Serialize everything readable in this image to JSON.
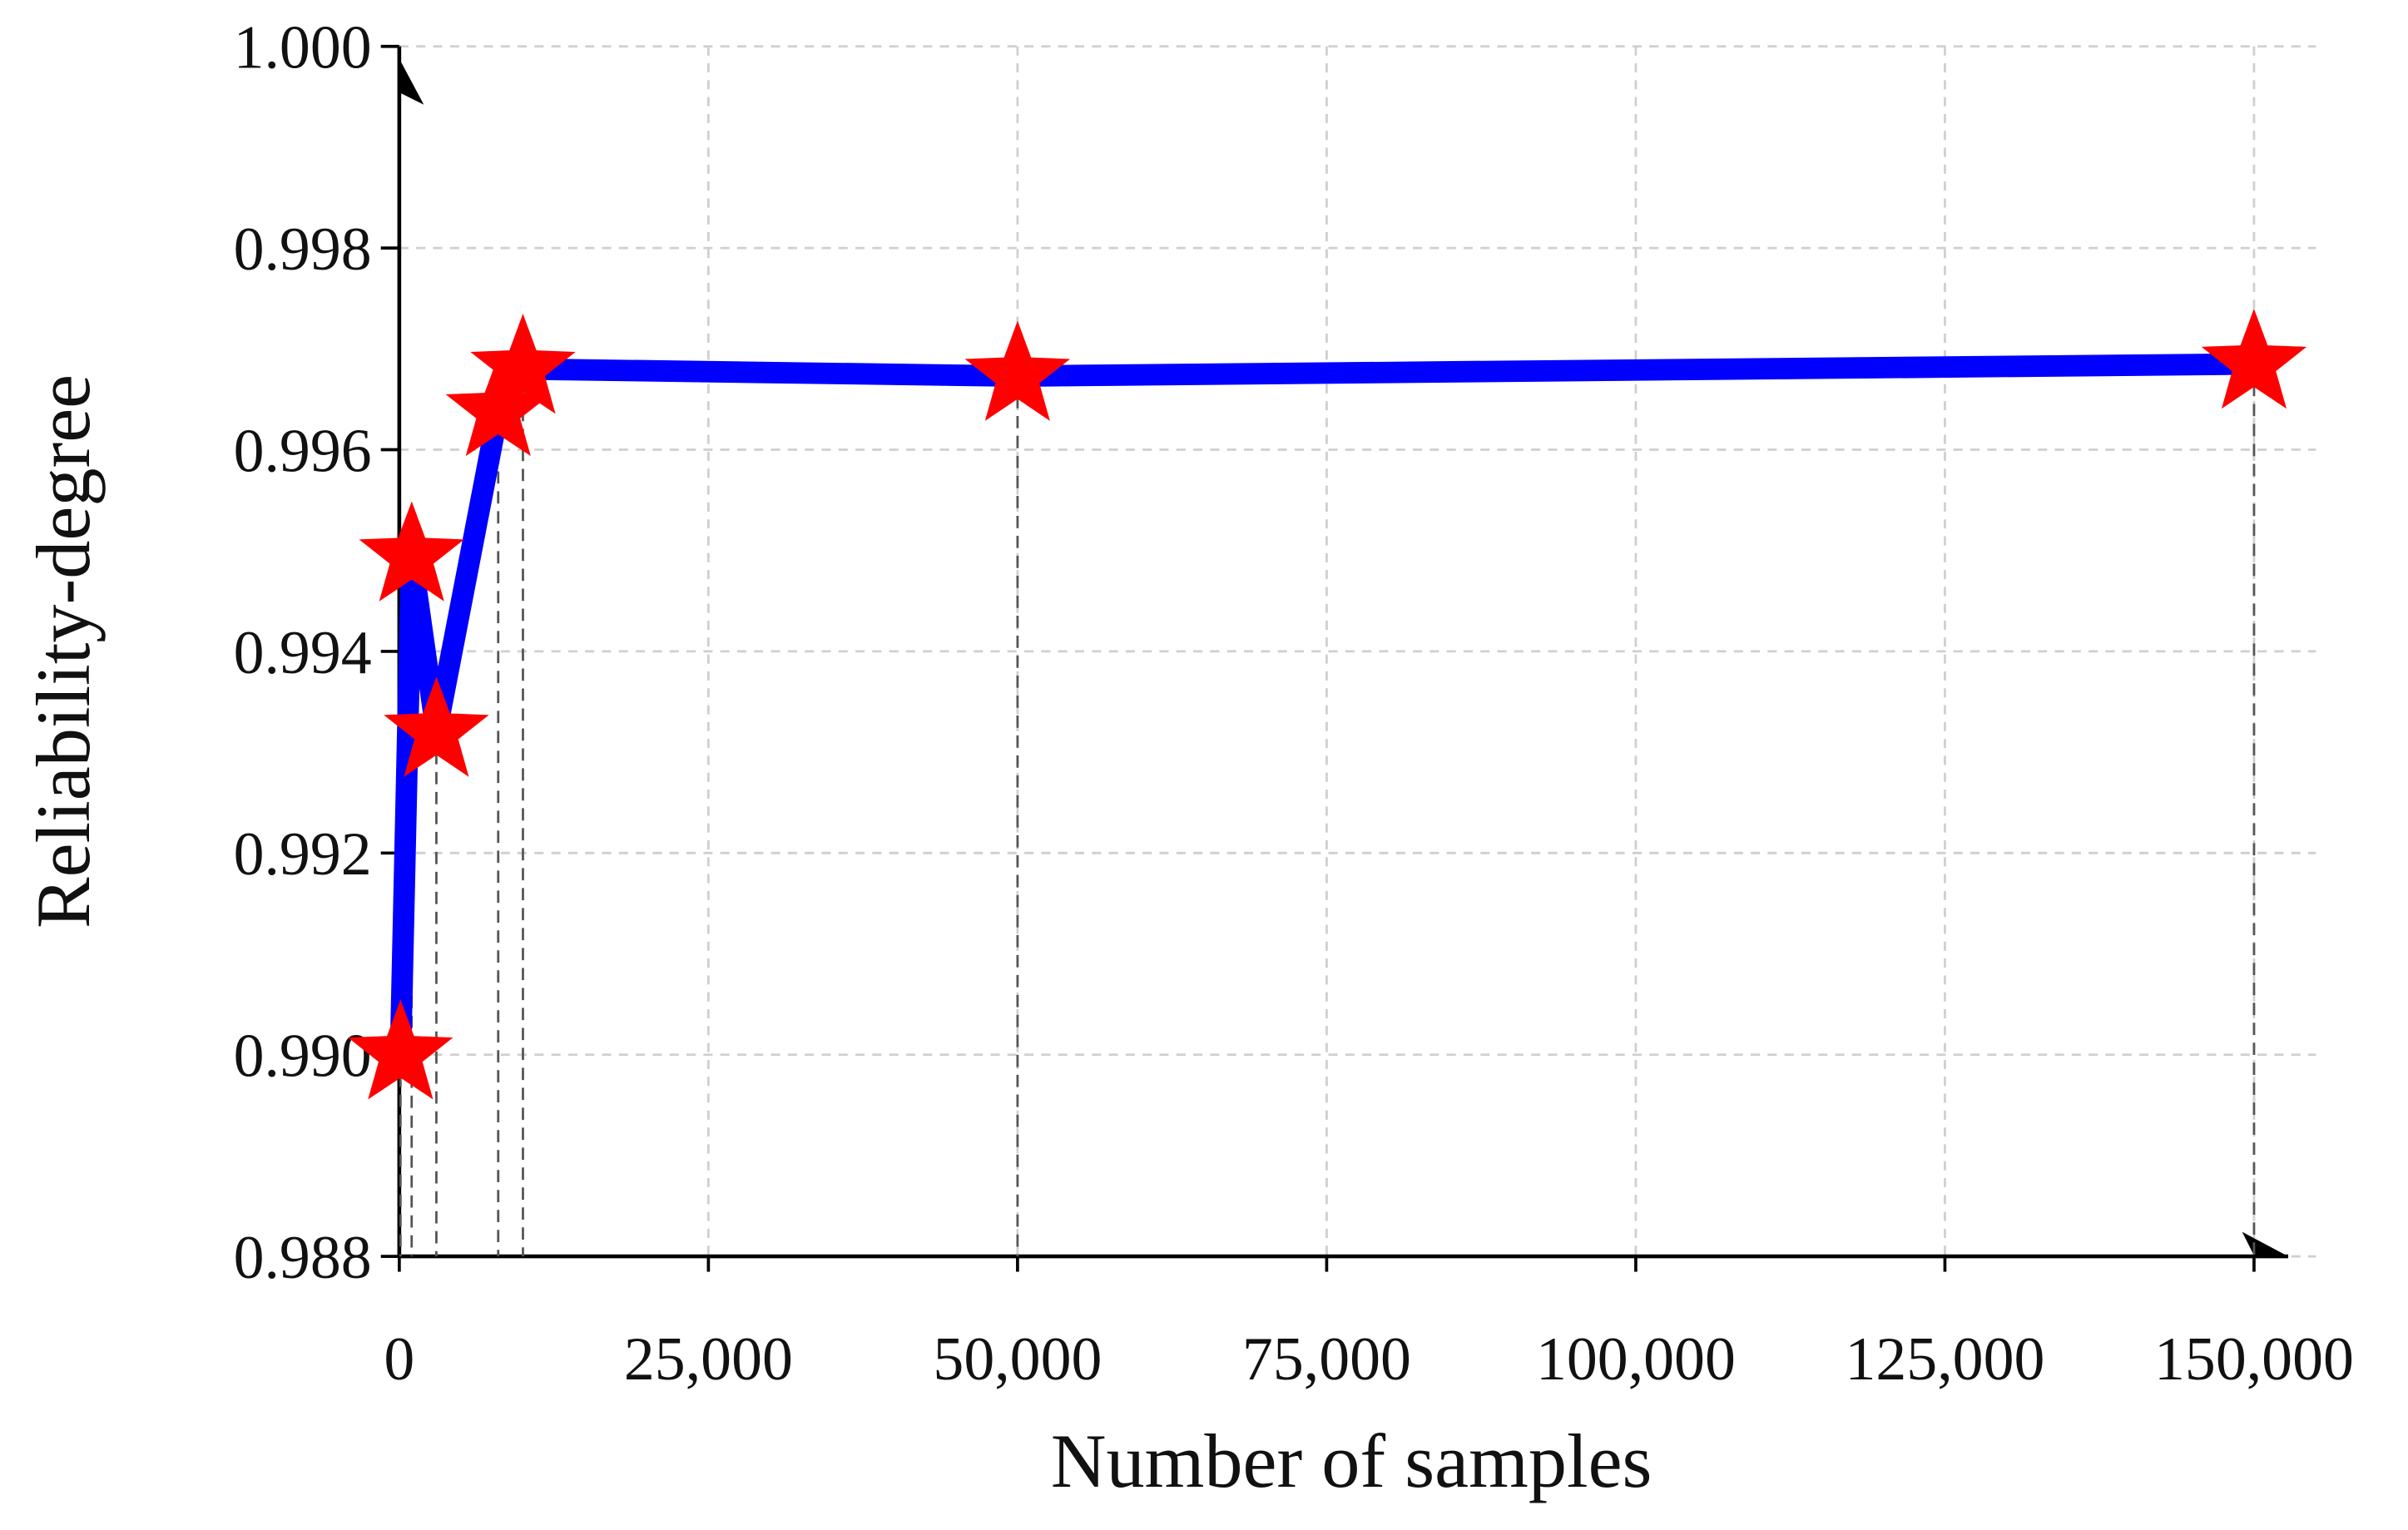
{
  "chart_data": {
    "type": "line",
    "x_label": "Number of samples",
    "y_label": "Reliability-degree",
    "x": [
      100,
      1000,
      3000,
      8000,
      10000,
      50000,
      150000
    ],
    "series": [
      {
        "color": "#0000ff",
        "marker_color": "#ff0000",
        "values": [
          0.99,
          0.99494,
          0.9932,
          0.99638,
          0.9968,
          0.99673,
          0.99685
        ]
      }
    ],
    "xlim": [
      0,
      155000
    ],
    "xticks": [
      0,
      {
        "value": 25000,
        "label": "25,000"
      },
      {
        "value": 50000,
        "label": "50,000"
      },
      {
        "value": 75000,
        "label": "75,000"
      },
      {
        "value": 100000,
        "label": "100,000"
      },
      {
        "value": 125000,
        "label": "125,000"
      },
      {
        "value": 150000,
        "label": "150,000"
      }
    ],
    "ylim": [
      0.988,
      1.0
    ],
    "yticks": [
      0.988,
      {
        "value": 0.99,
        "label": "0.990"
      },
      0.992,
      0.994,
      0.996,
      0.998,
      {
        "value": 1.0,
        "label": "1.000"
      }
    ],
    "grid": true
  }
}
